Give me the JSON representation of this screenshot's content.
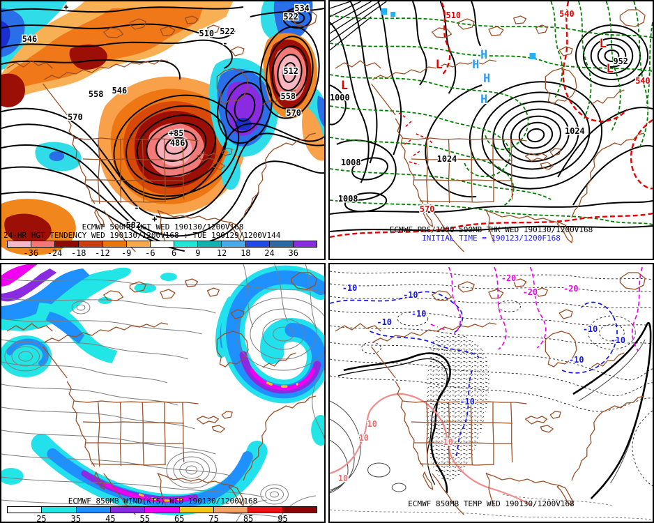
{
  "panels": {
    "tl": {
      "name": "500MB height and 24-hr height tendency",
      "title_line1": "ECMWF 500MB HGT WED 190130/1200V168",
      "title_line2": "24-HR HGT TENDENCY WED 190130/1200V168 : TUE 190129/1200V144",
      "map_labels": [
        "534",
        "522",
        "510",
        "546",
        "558",
        "546",
        "570",
        "522",
        "512",
        "558",
        "570",
        "582",
        "+85",
        "486"
      ],
      "sign_marks": [
        "+",
        "-",
        "+",
        "-"
      ],
      "colorbar": {
        "labels": [
          "-36",
          "-24",
          "-18",
          "-12",
          "-9",
          "-6",
          "6",
          "9",
          "12",
          "18",
          "24",
          "36"
        ],
        "colors": [
          "#f6b8c4",
          "#f4767a",
          "#8e0b04",
          "#c93d10",
          "#ea750f",
          "#f6a84e",
          "#ffffff",
          "#1ee6da",
          "#12b2b2",
          "#4aa9e8",
          "#1f49e8",
          "#2a6a9e",
          "#8a2be2"
        ]
      }
    },
    "tr": {
      "name": "MSLP and 1000-500MB thickness",
      "title_line1": "ECMWF PRS/1000-500MB THK WED 190130/1200V168",
      "title_line2": "INITIAL TIME = 190123/1200F168",
      "pressure_labels": [
        "1008",
        "1008",
        "1000",
        "1024",
        "1024",
        "952"
      ],
      "thickness_labels": [
        "510",
        "540",
        "540",
        "570"
      ],
      "low_symbols": [
        "L",
        "L",
        "L",
        "L"
      ],
      "high_symbols": [
        "H",
        "H",
        "H",
        "H"
      ]
    },
    "bl": {
      "name": "850MB wind speed",
      "title": "ECMWF 850MB WIND(KTS) WED 190130/1200V168",
      "colorbar": {
        "labels": [
          "25",
          "35",
          "45",
          "55",
          "65",
          "75",
          "85",
          "95"
        ],
        "colors": [
          "#ffffff",
          "#22e6e6",
          "#1e90ff",
          "#8a2be2",
          "#f000f0",
          "#f5c518",
          "#f4a460",
          "#ee1111",
          "#8b0000"
        ]
      }
    },
    "br": {
      "name": "850MB temperature",
      "title": "ECMWF 850MB TEMP WED 190130/1200V168",
      "blue_labels": [
        "-10",
        "-10",
        "-10",
        "-10",
        "-10",
        "-10",
        "-10",
        "-10"
      ],
      "magenta_labels": [
        "-20",
        "-20",
        "-20"
      ],
      "pink_labels": [
        "10",
        "10",
        "10",
        "10"
      ]
    }
  }
}
